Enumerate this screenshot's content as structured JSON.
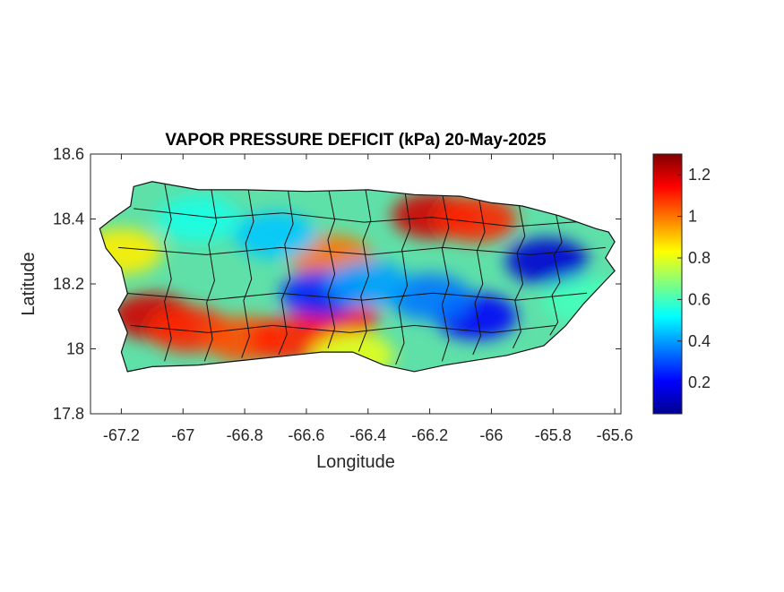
{
  "chart_data": {
    "type": "heatmap",
    "title": "VAPOR PRESSURE DEFICIT (kPa) 20-May-2025",
    "xlabel": "Longitude",
    "ylabel": "Latitude",
    "xlim": [
      -67.3,
      -65.58
    ],
    "ylim": [
      17.8,
      18.6
    ],
    "xticks": [
      -67.2,
      -67,
      -66.8,
      -66.6,
      -66.4,
      -66.2,
      -66,
      -65.8,
      -65.6
    ],
    "yticks": [
      17.8,
      18,
      18.2,
      18.4,
      18.6
    ],
    "colorbar": {
      "colormap": "jet",
      "range": [
        0.05,
        1.3
      ],
      "ticks": [
        0.2,
        0.4,
        0.6,
        0.8,
        1,
        1.2
      ]
    },
    "grid": false,
    "hotspots": [
      {
        "lon": -67.1,
        "lat": 18.1,
        "value": 1.2
      },
      {
        "lon": -66.98,
        "lat": 18.06,
        "value": 1.1
      },
      {
        "lon": -66.8,
        "lat": 18.03,
        "value": 1.05
      },
      {
        "lon": -66.65,
        "lat": 18.03,
        "value": 1.1
      },
      {
        "lon": -66.5,
        "lat": 18.1,
        "value": 1.15
      },
      {
        "lon": -66.52,
        "lat": 18.28,
        "value": 1.0
      },
      {
        "lon": -66.19,
        "lat": 18.41,
        "value": 1.2
      },
      {
        "lon": -66.05,
        "lat": 18.4,
        "value": 1.1
      },
      {
        "lon": -65.82,
        "lat": 18.27,
        "value": 0.15
      },
      {
        "lon": -66.05,
        "lat": 18.1,
        "value": 0.2
      },
      {
        "lon": -66.2,
        "lat": 18.16,
        "value": 0.35
      },
      {
        "lon": -66.55,
        "lat": 18.17,
        "value": 0.25
      },
      {
        "lon": -66.4,
        "lat": 18.2,
        "value": 0.4
      },
      {
        "lon": -66.7,
        "lat": 18.35,
        "value": 0.45
      },
      {
        "lon": -66.95,
        "lat": 18.4,
        "value": 0.55
      },
      {
        "lon": -67.2,
        "lat": 18.3,
        "value": 0.85
      },
      {
        "lon": -66.45,
        "lat": 17.98,
        "value": 0.8
      },
      {
        "lon": -65.7,
        "lat": 18.15,
        "value": 0.6
      }
    ]
  }
}
